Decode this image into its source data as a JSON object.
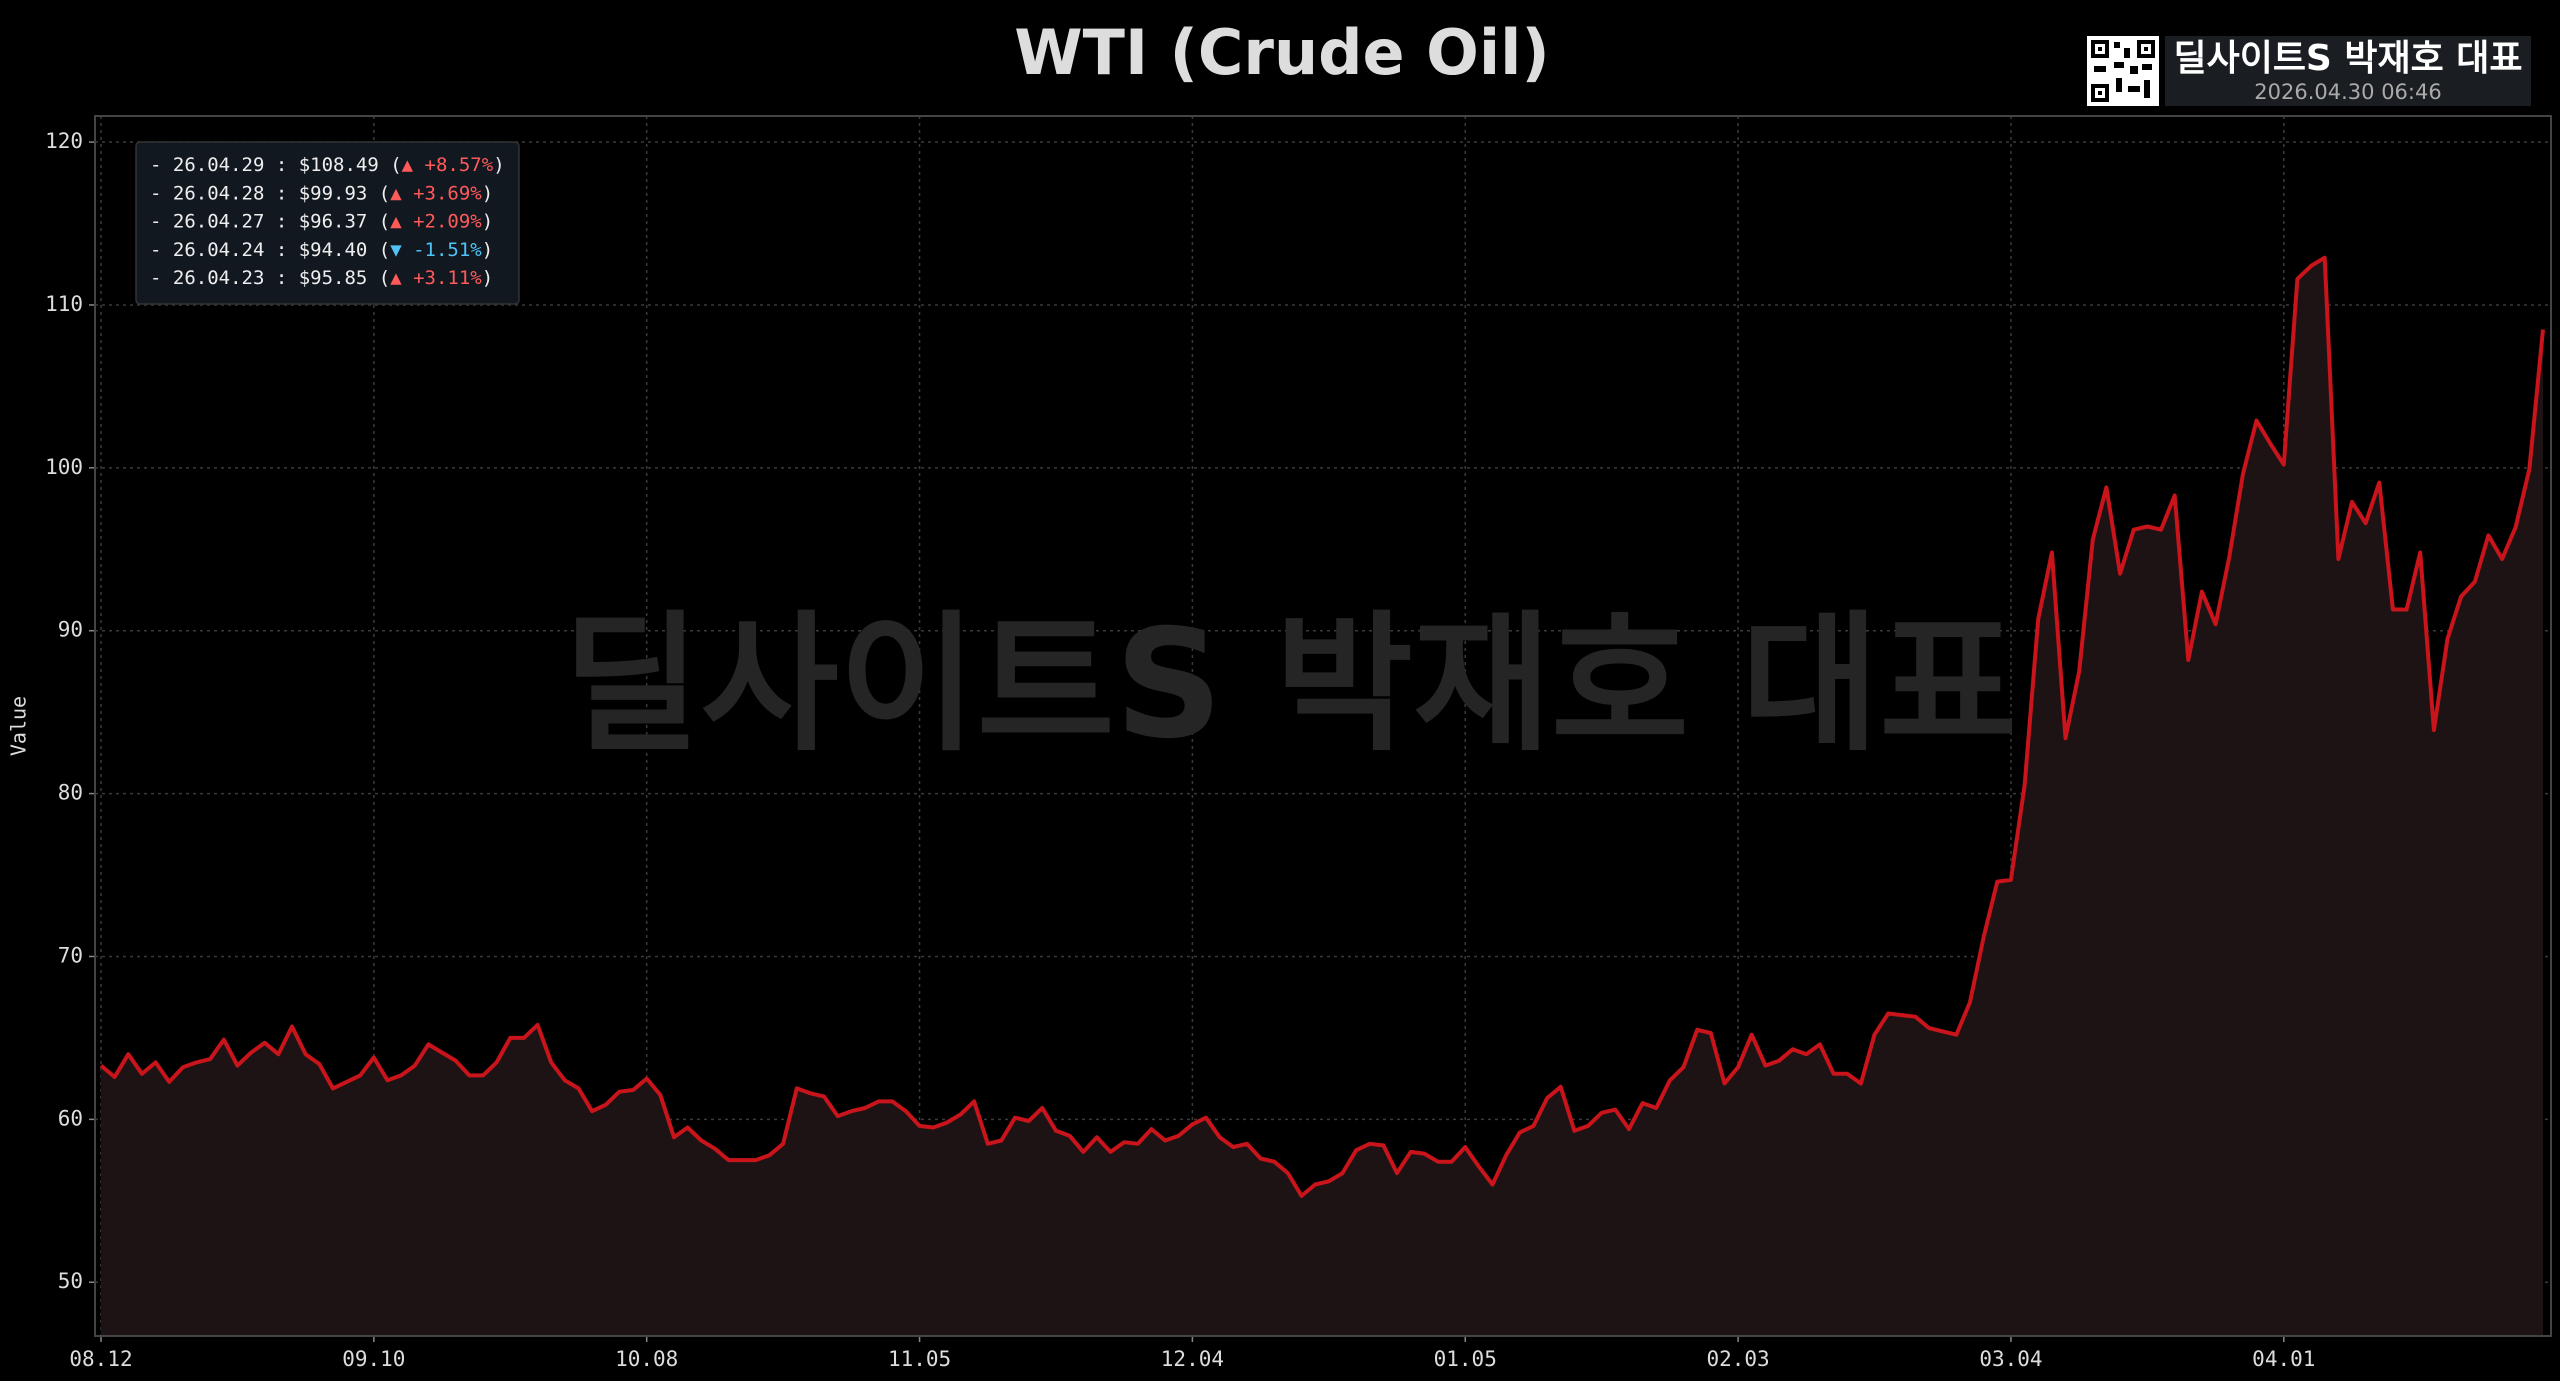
{
  "chart_data": {
    "type": "line",
    "title": "WTI (Crude Oil)",
    "y_label": "Value",
    "watermark": "딜사이트S 박재호 대표",
    "badge": {
      "name": "딜사이트S 박재호 대표",
      "timestamp": "2026.04.30 06:46"
    },
    "color": "#c8141a",
    "area": true,
    "area_color": "#1e1314",
    "grid": true,
    "ylim": [
      46.7,
      121.6
    ],
    "yticks": [
      50,
      60,
      70,
      80,
      90,
      100,
      110,
      120
    ],
    "categories": [
      "08.12",
      null,
      null,
      null,
      null,
      null,
      null,
      null,
      null,
      null,
      null,
      null,
      null,
      null,
      null,
      null,
      null,
      null,
      null,
      null,
      "09.10",
      null,
      null,
      null,
      null,
      null,
      null,
      null,
      null,
      null,
      null,
      null,
      null,
      null,
      null,
      null,
      null,
      null,
      null,
      null,
      "10.08",
      null,
      null,
      null,
      null,
      null,
      null,
      null,
      null,
      null,
      null,
      null,
      null,
      null,
      null,
      null,
      null,
      null,
      null,
      null,
      "11.05",
      null,
      null,
      null,
      null,
      null,
      null,
      null,
      null,
      null,
      null,
      null,
      null,
      null,
      null,
      null,
      null,
      null,
      null,
      null,
      "12.04",
      null,
      null,
      null,
      null,
      null,
      null,
      null,
      null,
      null,
      null,
      null,
      null,
      null,
      null,
      null,
      null,
      null,
      null,
      null,
      "01.05",
      null,
      null,
      null,
      null,
      null,
      null,
      null,
      null,
      null,
      null,
      null,
      null,
      null,
      null,
      null,
      null,
      null,
      null,
      null,
      "02.03",
      null,
      null,
      null,
      null,
      null,
      null,
      null,
      null,
      null,
      null,
      null,
      null,
      null,
      null,
      null,
      null,
      null,
      null,
      null,
      "03.04",
      null,
      null,
      null,
      null,
      null,
      null,
      null,
      null,
      null,
      null,
      null,
      null,
      null,
      null,
      null,
      null,
      null,
      null,
      null,
      "04.01",
      null,
      null,
      null,
      null,
      null,
      null,
      null,
      null,
      null,
      null,
      null,
      null,
      null,
      null,
      null,
      null,
      null,
      null,
      null
    ],
    "values": [
      63.3,
      62.6,
      64.0,
      62.8,
      63.5,
      62.3,
      63.2,
      63.5,
      63.7,
      64.9,
      63.3,
      64.1,
      64.7,
      64.0,
      65.7,
      64.0,
      63.4,
      61.9,
      62.3,
      62.7,
      63.8,
      62.4,
      62.7,
      63.3,
      64.6,
      64.1,
      63.6,
      62.7,
      62.7,
      63.5,
      65.0,
      65.0,
      65.8,
      63.5,
      62.4,
      61.9,
      60.5,
      60.9,
      61.7,
      61.8,
      62.5,
      61.5,
      58.9,
      59.5,
      58.7,
      58.2,
      57.5,
      57.5,
      57.5,
      57.8,
      58.5,
      61.9,
      61.6,
      61.4,
      60.2,
      60.5,
      60.7,
      61.1,
      61.1,
      60.5,
      59.6,
      59.5,
      59.8,
      60.3,
      61.1,
      58.5,
      58.7,
      60.1,
      59.9,
      60.7,
      59.3,
      59.0,
      58.0,
      58.9,
      58.0,
      58.6,
      58.5,
      59.4,
      58.7,
      59.0,
      59.7,
      60.1,
      58.9,
      58.3,
      58.5,
      57.6,
      57.4,
      56.7,
      55.3,
      56.0,
      56.2,
      56.7,
      58.1,
      58.5,
      58.4,
      56.7,
      58.0,
      57.9,
      57.4,
      57.4,
      58.3,
      57.1,
      56.0,
      57.8,
      59.2,
      59.6,
      61.3,
      62.0,
      59.3,
      59.6,
      60.4,
      60.6,
      59.4,
      61.0,
      60.7,
      62.4,
      63.2,
      65.5,
      65.3,
      62.2,
      63.2,
      65.2,
      63.3,
      63.6,
      64.3,
      64.0,
      64.6,
      62.8,
      62.8,
      62.2,
      65.2,
      66.5,
      66.4,
      66.3,
      65.6,
      65.4,
      65.2,
      67.2,
      71.2,
      74.6,
      74.7,
      80.5,
      90.7,
      94.8,
      83.4,
      87.5,
      95.6,
      98.8,
      93.5,
      96.2,
      96.4,
      96.2,
      98.3,
      88.2,
      92.4,
      90.4,
      94.5,
      99.6,
      102.9,
      101.5,
      100.2,
      111.6,
      112.4,
      112.9,
      94.4,
      97.9,
      96.6,
      99.1,
      91.3,
      91.3,
      94.8,
      83.9,
      89.5,
      92.1,
      93.0,
      95.85,
      94.4,
      96.37,
      99.93,
      108.49
    ],
    "legend": [
      {
        "head": "- 26.04.29 : $108.49 (",
        "change": "▲ +8.57%",
        "tail": ")",
        "color": "#ff5a5a"
      },
      {
        "head": "- 26.04.28 : $99.93 (",
        "change": "▲ +3.69%",
        "tail": ")",
        "color": "#ff5a5a"
      },
      {
        "head": "- 26.04.27 : $96.37 (",
        "change": "▲ +2.09%",
        "tail": ")",
        "color": "#ff5a5a"
      },
      {
        "head": "- 26.04.24 : $94.40 (",
        "change": "▼ -1.51%",
        "tail": ")",
        "color": "#4fc3f7"
      },
      {
        "head": "- 26.04.23 : $95.85 (",
        "change": "▲ +3.11%",
        "tail": ")",
        "color": "#ff5a5a"
      }
    ]
  }
}
